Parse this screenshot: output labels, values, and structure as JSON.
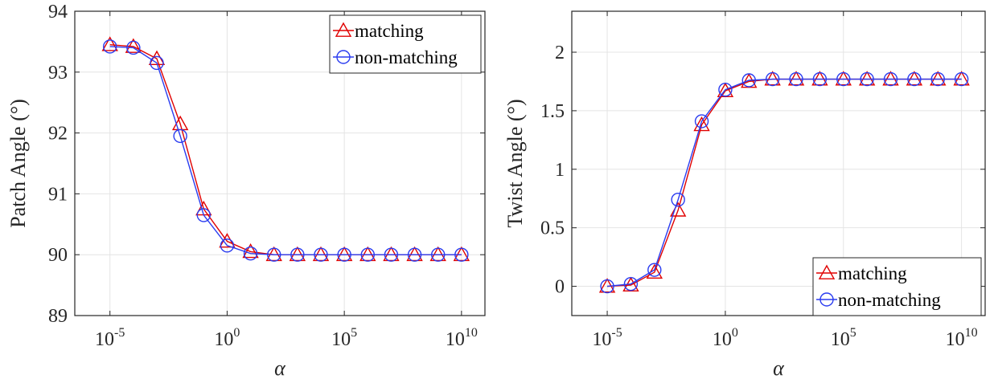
{
  "chart_data": [
    {
      "type": "line",
      "xlabel": "α",
      "ylabel": "Patch Angle (°)",
      "xscale": "log",
      "xlim": [
        -6.5,
        11
      ],
      "ylim": [
        89,
        94
      ],
      "xticks": [
        {
          "exp": "-5"
        },
        {
          "exp": "0"
        },
        {
          "exp": "5"
        },
        {
          "exp": "10"
        }
      ],
      "yticks": [
        89,
        90,
        91,
        92,
        93,
        94
      ],
      "grid": true,
      "legend_position": "top-right",
      "x": [
        -5,
        -4,
        -3,
        -2,
        -1,
        0,
        1,
        2,
        3,
        4,
        5,
        6,
        7,
        8,
        9,
        10
      ],
      "x_units": "log10(α)",
      "series": [
        {
          "name": "matching",
          "color": "#e00000",
          "marker": "triangle",
          "values": [
            93.45,
            93.42,
            93.22,
            92.15,
            90.75,
            90.22,
            90.05,
            90.0,
            90.0,
            90.0,
            90.0,
            90.0,
            90.0,
            90.0,
            90.0,
            90.0
          ]
        },
        {
          "name": "non-matching",
          "color": "#2a3cf0",
          "marker": "circle",
          "values": [
            93.42,
            93.4,
            93.15,
            91.95,
            90.65,
            90.15,
            90.02,
            90.0,
            90.0,
            90.0,
            90.0,
            90.0,
            90.0,
            90.0,
            90.0,
            90.0
          ]
        }
      ]
    },
    {
      "type": "line",
      "xlabel": "α",
      "ylabel": "Twist Angle (°)",
      "xscale": "log",
      "xlim": [
        -6.5,
        11
      ],
      "ylim": [
        -0.25,
        2.35
      ],
      "xticks": [
        {
          "exp": "-5"
        },
        {
          "exp": "0"
        },
        {
          "exp": "5"
        },
        {
          "exp": "10"
        }
      ],
      "yticks": [
        0,
        0.5,
        1,
        1.5,
        2
      ],
      "grid": true,
      "legend_position": "bottom-right",
      "x": [
        -5,
        -4,
        -3,
        -2,
        -1,
        0,
        1,
        2,
        3,
        4,
        5,
        6,
        7,
        8,
        9,
        10
      ],
      "x_units": "log10(α)",
      "series": [
        {
          "name": "matching",
          "color": "#e00000",
          "marker": "triangle",
          "values": [
            0.0,
            0.01,
            0.12,
            0.65,
            1.38,
            1.67,
            1.75,
            1.77,
            1.77,
            1.77,
            1.77,
            1.77,
            1.77,
            1.77,
            1.77,
            1.77
          ]
        },
        {
          "name": "non-matching",
          "color": "#2a3cf0",
          "marker": "circle",
          "values": [
            0.0,
            0.02,
            0.14,
            0.74,
            1.41,
            1.68,
            1.76,
            1.77,
            1.77,
            1.77,
            1.77,
            1.77,
            1.77,
            1.77,
            1.77,
            1.77
          ]
        }
      ]
    }
  ]
}
